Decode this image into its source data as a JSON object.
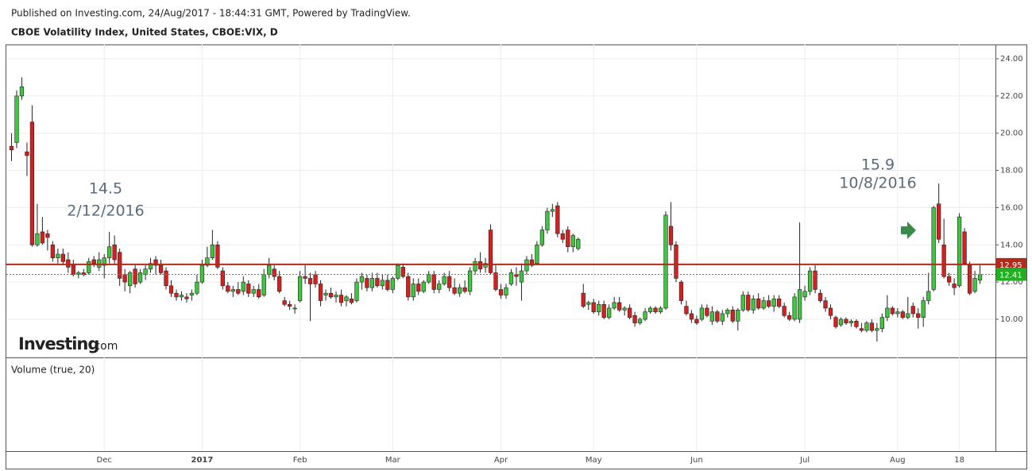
{
  "chart_data": {
    "type": "candlestick",
    "publisher": "Published on Investing.com, 24/Aug/2017 - 18:44:31 GMT, Powered by TradingView.",
    "title": "CBOE Volatility Index, United States, CBOE:VIX, D",
    "up_color": "#3ec63e",
    "down_color": "#d61f1f",
    "grid": true,
    "ylim": [
      7.95,
      24.77
    ],
    "yticks": [
      {
        "value": 10,
        "label": "10.00"
      },
      {
        "value": 12,
        "label": "12.00"
      },
      {
        "value": 14,
        "label": "14.00"
      },
      {
        "value": 16,
        "label": "16.00"
      },
      {
        "value": 18,
        "label": "18.00"
      },
      {
        "value": 20,
        "label": "20.00"
      },
      {
        "value": 22,
        "label": "22.00"
      },
      {
        "value": 24,
        "label": "24.00"
      }
    ],
    "xlim": [
      -1,
      191
    ],
    "xticks": [
      {
        "value": 18,
        "label": "Dec"
      },
      {
        "value": 37,
        "label": "2017"
      },
      {
        "value": 56,
        "label": "Feb"
      },
      {
        "value": 74,
        "label": "Mar"
      },
      {
        "value": 95,
        "label": "Apr"
      },
      {
        "value": 113,
        "label": "May"
      },
      {
        "value": 133,
        "label": "Jun"
      },
      {
        "value": 154,
        "label": "Jul"
      },
      {
        "value": 172,
        "label": "Aug"
      },
      {
        "value": 184,
        "label": "18"
      }
    ],
    "price_lines": [
      {
        "value": 12.95,
        "color": "#b22a1a"
      },
      {
        "value": 12.41,
        "color": "#22b022"
      }
    ],
    "annotations": [
      [
        "14.5",
        "2/12/2016"
      ],
      [
        "15.9",
        "10/8/2016"
      ]
    ],
    "watermark": [
      "Investing",
      ".com"
    ],
    "volume_label": "Volume (true, 20)",
    "values": [
      [
        19.3,
        20.0,
        18.5,
        19.1
      ],
      [
        19.5,
        22.3,
        19.2,
        22.0
      ],
      [
        22.0,
        23.0,
        21.8,
        22.5
      ],
      [
        19.0,
        19.5,
        17.7,
        18.8
      ],
      [
        20.6,
        21.5,
        13.9,
        14.0
      ],
      [
        14.0,
        16.2,
        13.9,
        14.6
      ],
      [
        14.7,
        15.5,
        14.0,
        14.1
      ],
      [
        14.6,
        14.8,
        13.7,
        14.4
      ],
      [
        14.0,
        14.2,
        13.1,
        13.3
      ],
      [
        13.3,
        13.8,
        13.0,
        13.5
      ],
      [
        13.5,
        13.8,
        12.9,
        13.1
      ],
      [
        13.2,
        13.6,
        12.5,
        12.8
      ],
      [
        12.9,
        13.2,
        12.3,
        12.4
      ],
      [
        12.4,
        12.6,
        12.2,
        12.5
      ],
      [
        12.5,
        12.7,
        12.3,
        12.4
      ],
      [
        12.5,
        13.3,
        12.4,
        13.1
      ],
      [
        13.2,
        13.4,
        12.8,
        13.0
      ],
      [
        12.8,
        13.6,
        12.6,
        13.2
      ],
      [
        12.9,
        13.5,
        12.2,
        13.3
      ],
      [
        13.3,
        14.7,
        13.0,
        13.9
      ],
      [
        14.0,
        14.5,
        13.0,
        13.2
      ],
      [
        13.6,
        13.8,
        11.8,
        12.2
      ],
      [
        12.4,
        12.7,
        11.5,
        12.0
      ],
      [
        11.8,
        12.6,
        11.4,
        12.5
      ],
      [
        12.7,
        12.9,
        11.7,
        11.9
      ],
      [
        12.0,
        12.7,
        11.9,
        12.5
      ],
      [
        12.4,
        12.9,
        12.1,
        12.7
      ],
      [
        12.7,
        13.3,
        12.5,
        13.0
      ],
      [
        13.2,
        13.4,
        12.4,
        12.9
      ],
      [
        12.9,
        13.2,
        12.4,
        12.5
      ],
      [
        12.6,
        12.8,
        11.6,
        11.8
      ],
      [
        11.8,
        12.1,
        11.2,
        11.4
      ],
      [
        11.4,
        11.6,
        11.0,
        11.2
      ],
      [
        11.2,
        11.5,
        11.0,
        11.3
      ],
      [
        11.2,
        11.4,
        10.9,
        11.1
      ],
      [
        11.3,
        11.6,
        11.0,
        11.4
      ],
      [
        11.4,
        12.4,
        11.3,
        12.0
      ],
      [
        12.0,
        13.2,
        11.9,
        12.9
      ],
      [
        12.9,
        13.9,
        12.8,
        13.3
      ],
      [
        13.3,
        14.8,
        13.2,
        14.0
      ],
      [
        14.0,
        14.2,
        12.7,
        12.8
      ],
      [
        12.6,
        12.8,
        11.6,
        11.8
      ],
      [
        11.8,
        12.0,
        11.4,
        11.5
      ],
      [
        11.5,
        11.8,
        11.2,
        11.6
      ],
      [
        11.6,
        12.0,
        11.3,
        11.4
      ],
      [
        11.5,
        12.3,
        11.3,
        12.0
      ],
      [
        11.9,
        12.1,
        11.2,
        11.4
      ],
      [
        11.4,
        11.8,
        11.2,
        11.6
      ],
      [
        11.6,
        11.9,
        11.1,
        11.2
      ],
      [
        11.3,
        12.7,
        11.2,
        12.4
      ],
      [
        12.4,
        13.3,
        12.2,
        12.9
      ],
      [
        12.7,
        12.9,
        12.1,
        12.3
      ],
      [
        12.3,
        12.6,
        11.4,
        11.5
      ],
      [
        11.0,
        11.2,
        10.7,
        10.8
      ],
      [
        10.8,
        11.0,
        10.5,
        10.7
      ],
      [
        10.6,
        10.8,
        10.3,
        10.6
      ],
      [
        11.0,
        12.6,
        10.9,
        12.3
      ],
      [
        12.3,
        12.9,
        11.9,
        12.2
      ],
      [
        12.2,
        12.5,
        9.9,
        11.9
      ],
      [
        12.4,
        12.6,
        11.7,
        11.9
      ],
      [
        11.9,
        12.1,
        10.7,
        11.0
      ],
      [
        11.3,
        11.6,
        11.0,
        11.4
      ],
      [
        11.4,
        11.7,
        11.1,
        11.2
      ],
      [
        11.2,
        11.5,
        10.9,
        11.3
      ],
      [
        11.3,
        11.6,
        10.7,
        10.9
      ],
      [
        11.0,
        11.3,
        10.7,
        11.2
      ],
      [
        11.1,
        11.4,
        10.8,
        10.9
      ],
      [
        11.0,
        12.2,
        10.9,
        12.0
      ],
      [
        12.0,
        12.5,
        11.6,
        12.3
      ],
      [
        12.2,
        12.4,
        11.5,
        11.7
      ],
      [
        11.7,
        12.5,
        11.5,
        12.2
      ],
      [
        12.2,
        12.5,
        11.7,
        11.8
      ],
      [
        11.8,
        12.4,
        11.6,
        12.1
      ],
      [
        12.1,
        12.4,
        11.5,
        11.6
      ],
      [
        11.6,
        12.3,
        11.4,
        12.2
      ],
      [
        12.2,
        13.0,
        12.1,
        12.9
      ],
      [
        12.8,
        13.0,
        12.2,
        12.3
      ],
      [
        12.3,
        12.5,
        11.0,
        11.2
      ],
      [
        11.2,
        12.2,
        11.0,
        11.9
      ],
      [
        11.9,
        12.2,
        11.3,
        11.5
      ],
      [
        11.5,
        12.1,
        11.4,
        12.0
      ],
      [
        12.0,
        12.6,
        11.9,
        12.4
      ],
      [
        12.4,
        12.6,
        11.4,
        11.6
      ],
      [
        11.6,
        12.1,
        11.4,
        11.9
      ],
      [
        11.9,
        12.5,
        11.8,
        12.3
      ],
      [
        12.3,
        12.6,
        11.5,
        11.7
      ],
      [
        11.7,
        12.2,
        11.3,
        11.4
      ],
      [
        11.4,
        11.9,
        11.2,
        11.7
      ],
      [
        11.7,
        12.1,
        11.4,
        11.5
      ],
      [
        11.5,
        12.8,
        11.3,
        12.6
      ],
      [
        12.6,
        13.3,
        12.4,
        13.1
      ],
      [
        13.1,
        13.6,
        12.5,
        12.7
      ],
      [
        12.8,
        13.3,
        12.5,
        13.0
      ],
      [
        14.8,
        15.1,
        12.4,
        12.5
      ],
      [
        12.5,
        12.9,
        11.5,
        11.6
      ],
      [
        11.6,
        11.9,
        11.1,
        11.3
      ],
      [
        11.3,
        11.9,
        11.1,
        11.7
      ],
      [
        11.9,
        12.7,
        11.8,
        12.5
      ],
      [
        12.4,
        12.8,
        11.8,
        12.3
      ],
      [
        12.0,
        13.0,
        11.0,
        12.6
      ],
      [
        12.6,
        13.4,
        12.4,
        13.2
      ],
      [
        13.2,
        13.5,
        12.8,
        12.9
      ],
      [
        13.0,
        14.2,
        12.9,
        14.0
      ],
      [
        14.0,
        15.0,
        13.9,
        14.8
      ],
      [
        14.8,
        16.0,
        14.6,
        15.8
      ],
      [
        15.8,
        16.2,
        15.5,
        15.9
      ],
      [
        16.1,
        16.3,
        14.4,
        14.6
      ],
      [
        14.6,
        14.8,
        14.1,
        14.3
      ],
      [
        14.8,
        15.0,
        13.6,
        13.9
      ],
      [
        13.9,
        14.6,
        13.6,
        14.5
      ],
      [
        13.8,
        14.4,
        13.7,
        14.3
      ],
      [
        11.4,
        11.9,
        10.6,
        10.7
      ],
      [
        10.8,
        11.0,
        10.5,
        10.9
      ],
      [
        10.9,
        11.1,
        10.3,
        10.4
      ],
      [
        10.4,
        11.0,
        10.2,
        10.8
      ],
      [
        10.8,
        11.0,
        10.0,
        10.1
      ],
      [
        10.1,
        10.8,
        10.0,
        10.6
      ],
      [
        10.6,
        11.2,
        10.5,
        10.9
      ],
      [
        10.9,
        11.2,
        10.4,
        10.5
      ],
      [
        10.5,
        10.7,
        10.2,
        10.6
      ],
      [
        10.6,
        10.8,
        10.0,
        10.1
      ],
      [
        10.2,
        10.4,
        9.6,
        9.8
      ],
      [
        9.8,
        10.1,
        9.7,
        10.0
      ],
      [
        10.0,
        10.6,
        9.9,
        10.4
      ],
      [
        10.4,
        10.7,
        10.3,
        10.6
      ],
      [
        10.6,
        10.7,
        10.3,
        10.4
      ],
      [
        10.4,
        10.7,
        10.3,
        10.6
      ],
      [
        10.6,
        15.8,
        10.5,
        15.6
      ],
      [
        15.0,
        16.3,
        13.7,
        14.0
      ],
      [
        14.0,
        14.2,
        12.0,
        12.2
      ],
      [
        12.0,
        12.1,
        10.8,
        11.0
      ],
      [
        10.7,
        11.0,
        10.2,
        10.3
      ],
      [
        10.3,
        10.5,
        9.8,
        10.0
      ],
      [
        10.0,
        10.2,
        9.7,
        9.8
      ],
      [
        10.0,
        10.8,
        9.9,
        10.6
      ],
      [
        10.6,
        10.8,
        10.1,
        10.2
      ],
      [
        9.9,
        10.7,
        9.7,
        10.4
      ],
      [
        10.4,
        10.5,
        9.8,
        9.9
      ],
      [
        9.9,
        10.5,
        9.7,
        10.3
      ],
      [
        10.3,
        10.6,
        10.1,
        10.5
      ],
      [
        10.5,
        10.7,
        9.8,
        9.9
      ],
      [
        9.9,
        10.6,
        9.4,
        10.5
      ],
      [
        10.5,
        11.5,
        10.4,
        11.3
      ],
      [
        11.3,
        11.5,
        10.4,
        10.5
      ],
      [
        10.5,
        11.3,
        10.3,
        11.1
      ],
      [
        11.1,
        11.4,
        10.5,
        10.6
      ],
      [
        10.6,
        11.2,
        10.5,
        11.0
      ],
      [
        11.0,
        11.3,
        10.6,
        10.7
      ],
      [
        10.7,
        11.3,
        10.4,
        11.1
      ],
      [
        11.1,
        11.3,
        10.6,
        10.7
      ],
      [
        10.7,
        10.9,
        10.1,
        10.2
      ],
      [
        10.2,
        10.4,
        9.9,
        10.0
      ],
      [
        10.0,
        11.4,
        9.9,
        11.2
      ],
      [
        10.0,
        15.2,
        9.8,
        11.6
      ],
      [
        11.2,
        11.8,
        11.0,
        11.5
      ],
      [
        11.5,
        12.8,
        11.3,
        12.6
      ],
      [
        12.6,
        12.9,
        11.4,
        11.6
      ],
      [
        11.4,
        11.6,
        10.9,
        11.0
      ],
      [
        11.0,
        11.2,
        10.4,
        10.6
      ],
      [
        10.6,
        10.8,
        10.0,
        10.2
      ],
      [
        10.1,
        10.2,
        9.5,
        9.6
      ],
      [
        9.7,
        10.1,
        9.6,
        10.0
      ],
      [
        10.0,
        10.1,
        9.7,
        9.8
      ],
      [
        9.8,
        10.0,
        9.6,
        9.9
      ],
      [
        9.9,
        10.0,
        9.5,
        9.6
      ],
      [
        9.5,
        9.8,
        9.3,
        9.4
      ],
      [
        9.4,
        9.9,
        9.3,
        9.8
      ],
      [
        9.8,
        10.0,
        9.3,
        9.4
      ],
      [
        9.4,
        9.8,
        8.8,
        9.5
      ],
      [
        9.5,
        10.3,
        9.3,
        10.1
      ],
      [
        10.1,
        11.3,
        9.9,
        10.6
      ],
      [
        10.6,
        10.7,
        10.2,
        10.3
      ],
      [
        10.3,
        10.6,
        10.1,
        10.4
      ],
      [
        10.4,
        10.5,
        10.0,
        10.1
      ],
      [
        10.1,
        11.2,
        10.0,
        10.3
      ],
      [
        10.7,
        10.9,
        10.1,
        10.3
      ],
      [
        10.3,
        10.6,
        9.5,
        10.1
      ],
      [
        10.1,
        11.2,
        9.6,
        11.0
      ],
      [
        11.0,
        12.5,
        10.8,
        11.5
      ],
      [
        11.6,
        16.1,
        11.5,
        16.0
      ],
      [
        16.2,
        17.3,
        14.1,
        14.3
      ],
      [
        14.0,
        15.4,
        12.2,
        12.3
      ],
      [
        12.3,
        12.5,
        11.8,
        12.0
      ],
      [
        11.9,
        12.2,
        11.3,
        11.7
      ],
      [
        11.8,
        15.7,
        11.7,
        15.5
      ],
      [
        14.7,
        14.9,
        12.9,
        13.0
      ],
      [
        12.9,
        13.1,
        11.3,
        11.4
      ],
      [
        11.5,
        12.6,
        11.4,
        12.2
      ],
      [
        12.1,
        12.9,
        11.9,
        12.4
      ]
    ]
  }
}
